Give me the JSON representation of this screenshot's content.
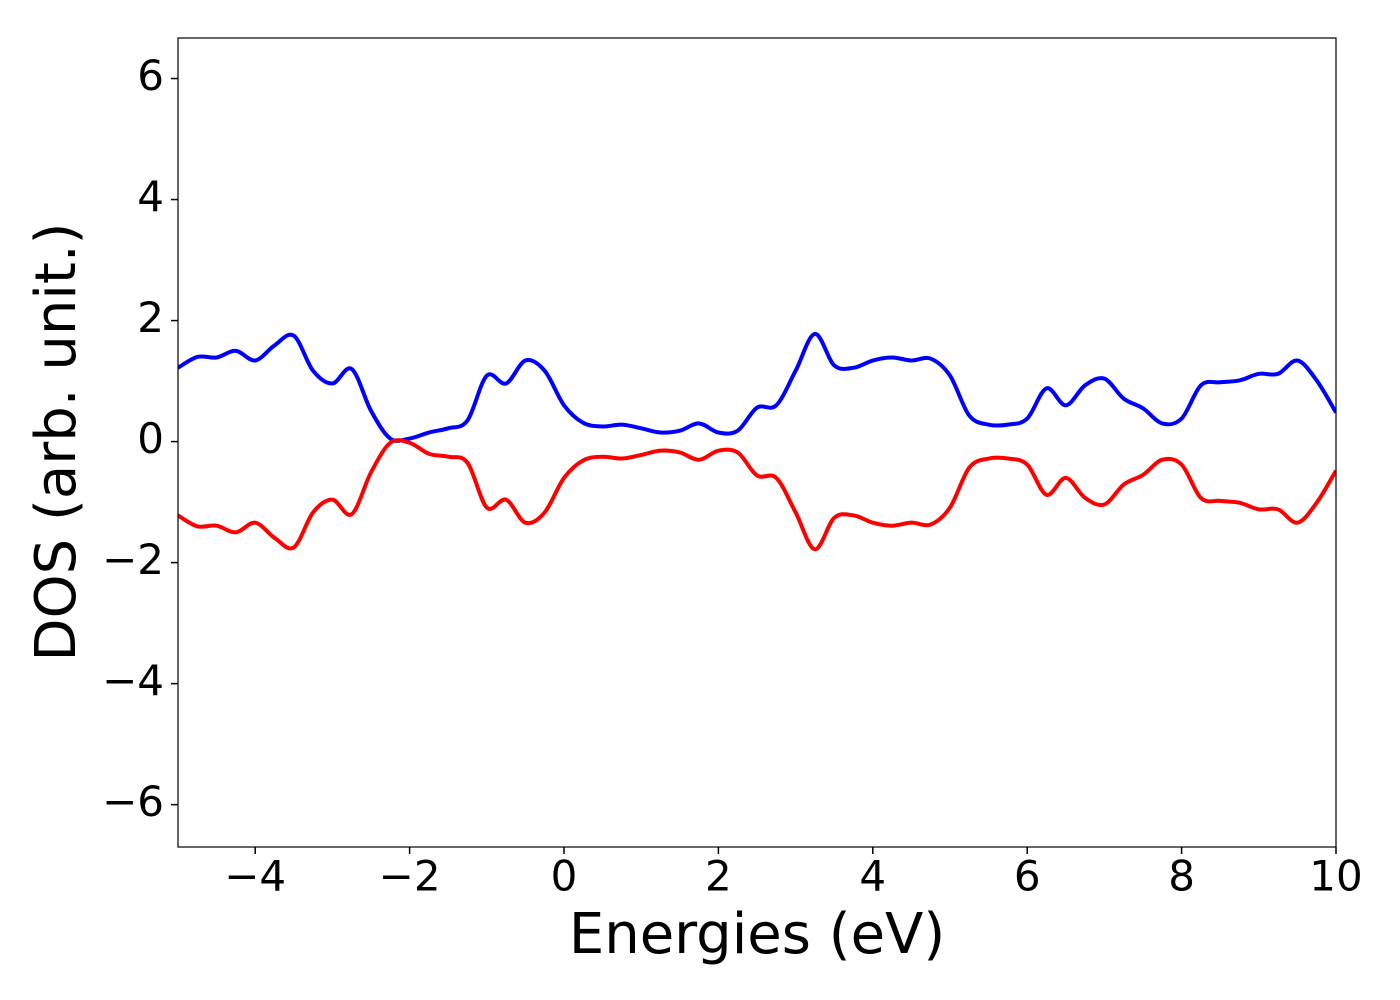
{
  "chart_data": {
    "type": "line",
    "xlabel": "Energies (eV)",
    "ylabel": "DOS (arb. unit.)",
    "x": [
      -5,
      -4.75,
      -4.5,
      -4.25,
      -4,
      -3.75,
      -3.5,
      -3.25,
      -3,
      -2.75,
      -2.5,
      -2.25,
      -2,
      -1.75,
      -1.5,
      -1.25,
      -1,
      -0.75,
      -0.5,
      -0.25,
      0,
      0.25,
      0.5,
      0.75,
      1,
      1.25,
      1.5,
      1.75,
      2,
      2.25,
      2.5,
      2.75,
      3,
      3.25,
      3.5,
      3.75,
      4,
      4.25,
      4.5,
      4.75,
      5,
      5.25,
      5.5,
      5.75,
      6,
      6.25,
      6.5,
      6.75,
      7,
      7.25,
      7.5,
      7.75,
      8,
      8.25,
      8.5,
      8.75,
      9,
      9.25,
      9.5,
      9.75,
      10
    ],
    "series": [
      {
        "color": "#0000ff",
        "values": [
          1.22,
          1.4,
          1.39,
          1.5,
          1.34,
          1.59,
          1.75,
          1.17,
          0.96,
          1.2,
          0.51,
          0.05,
          0.05,
          0.15,
          0.22,
          0.35,
          1.09,
          0.96,
          1.34,
          1.17,
          0.6,
          0.31,
          0.25,
          0.28,
          0.22,
          0.15,
          0.18,
          0.3,
          0.15,
          0.18,
          0.56,
          0.6,
          1.17,
          1.78,
          1.26,
          1.22,
          1.34,
          1.39,
          1.34,
          1.37,
          1.09,
          0.43,
          0.28,
          0.28,
          0.38,
          0.88,
          0.6,
          0.93,
          1.04,
          0.71,
          0.55,
          0.3,
          0.38,
          0.93,
          0.98,
          1.01,
          1.12,
          1.12,
          1.34,
          1.01,
          0.48
        ]
      },
      {
        "color": "#ff0000",
        "values": [
          -1.22,
          -1.4,
          -1.39,
          -1.5,
          -1.34,
          -1.59,
          -1.75,
          -1.17,
          -0.96,
          -1.2,
          -0.51,
          -0.02,
          -0.02,
          -0.2,
          -0.25,
          -0.35,
          -1.09,
          -0.96,
          -1.34,
          -1.17,
          -0.6,
          -0.31,
          -0.25,
          -0.28,
          -0.22,
          -0.15,
          -0.18,
          -0.3,
          -0.15,
          -0.18,
          -0.56,
          -0.6,
          -1.17,
          -1.78,
          -1.26,
          -1.22,
          -1.34,
          -1.39,
          -1.34,
          -1.37,
          -1.09,
          -0.43,
          -0.28,
          -0.28,
          -0.38,
          -0.88,
          -0.6,
          -0.93,
          -1.04,
          -0.71,
          -0.55,
          -0.3,
          -0.38,
          -0.93,
          -0.98,
          -1.01,
          -1.12,
          -1.12,
          -1.34,
          -1.01,
          -0.48
        ]
      }
    ],
    "xlim": [
      -5,
      10
    ],
    "xticks": [
      {
        "value": -4,
        "label": "−4"
      },
      {
        "value": -2,
        "label": "−2"
      },
      0,
      2,
      4,
      6,
      8,
      10
    ],
    "ylim": [
      -6.7,
      6.67
    ],
    "yticks": [
      {
        "value": -6,
        "label": "−6"
      },
      {
        "value": -4,
        "label": "−4"
      },
      {
        "value": -2,
        "label": "−2"
      },
      0,
      2,
      4,
      6
    ],
    "grid": false
  }
}
